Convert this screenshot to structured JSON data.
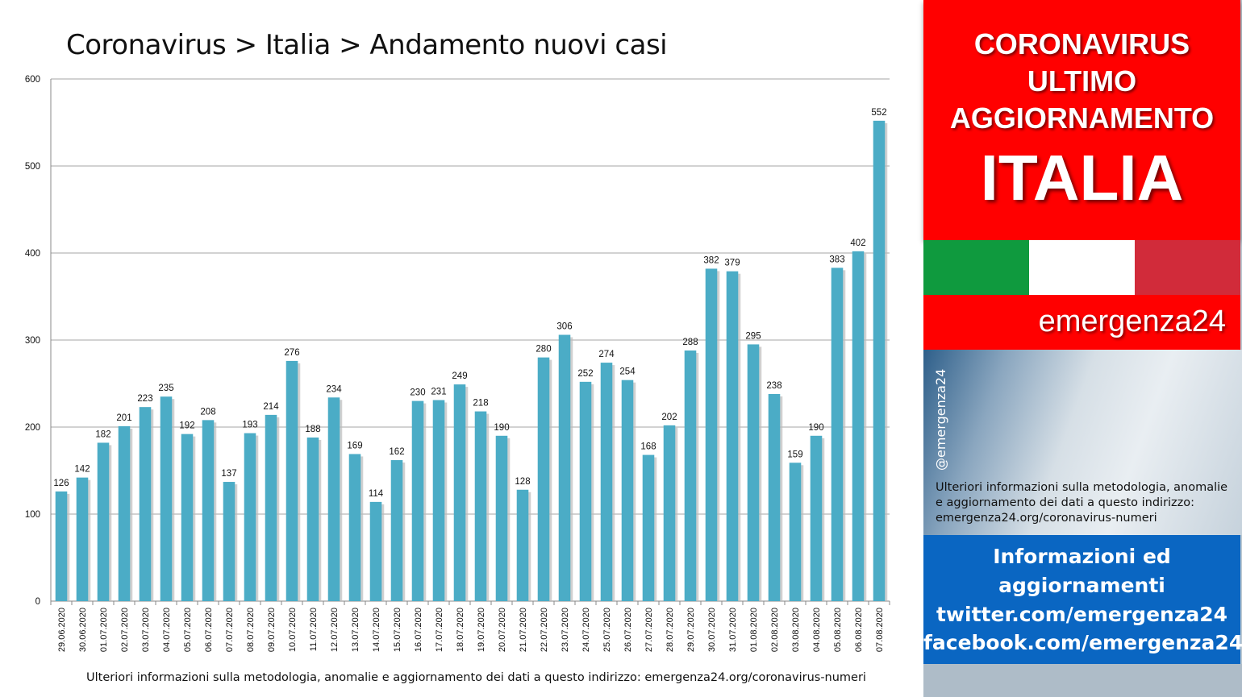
{
  "chart_data": {
    "type": "bar",
    "title": "Coronavirus > Italia > Andamento nuovi casi",
    "categories": [
      "29.06.2020",
      "30.06.2020",
      "01.07.2020",
      "02.07.2020",
      "03.07.2020",
      "04.07.2020",
      "05.07.2020",
      "06.07.2020",
      "07.07.2020",
      "08.07.2020",
      "09.07.2020",
      "10.07.2020",
      "11.07.2020",
      "12.07.2020",
      "13.07.2020",
      "14.07.2020",
      "15.07.2020",
      "16.07.2020",
      "17.07.2020",
      "18.07.2020",
      "19.07.2020",
      "20.07.2020",
      "21.07.2020",
      "22.07.2020",
      "23.07.2020",
      "24.07.2020",
      "25.07.2020",
      "26.07.2020",
      "27.07.2020",
      "28.07.2020",
      "29.07.2020",
      "30.07.2020",
      "31.07.2020",
      "01.08.2020",
      "02.08.2020",
      "03.08.2020",
      "04.08.2020",
      "05.08.2020",
      "06.08.2020",
      "07.08.2020"
    ],
    "values": [
      126,
      142,
      182,
      201,
      223,
      235,
      192,
      208,
      137,
      193,
      214,
      276,
      188,
      234,
      169,
      114,
      162,
      230,
      231,
      249,
      218,
      190,
      128,
      280,
      306,
      252,
      274,
      254,
      168,
      202,
      288,
      382,
      379,
      295,
      238,
      159,
      190,
      383,
      402,
      552
    ],
    "ylim": [
      0,
      600
    ],
    "yticks": [
      0,
      100,
      200,
      300,
      400,
      500,
      600
    ],
    "grid": true,
    "legend": "none",
    "bar_color": "#4bacc6",
    "footer": "Ulteriori informazioni sulla metodologia, anomalie e aggiornamento dei dati a questo indirizzo: emergenza24.org/coronavirus-numeri"
  },
  "sidebar": {
    "banner": {
      "line1": "CORONAVIRUS",
      "line2": "ULTIMO",
      "line3": "AGGIORNAMENTO",
      "country": "ITALIA",
      "background": "#ff0000"
    },
    "flag_colors": [
      "#0f9a3e",
      "#ffffff",
      "#d12b3a"
    ],
    "brand": "emergenza24",
    "handle": "@emergenza24",
    "note_lines": [
      "Ulteriori informazioni sulla metodologia, anomalie",
      "e aggiornamento dei dati a questo indirizzo:",
      "emergenza24.org/coronavirus-numeri"
    ],
    "info": {
      "line1": "Informazioni ed",
      "line2": "aggiornamenti",
      "line3": "twitter.com/emergenza24",
      "line4": "facebook.com/emergenza24",
      "background": "#0a66c2"
    }
  }
}
